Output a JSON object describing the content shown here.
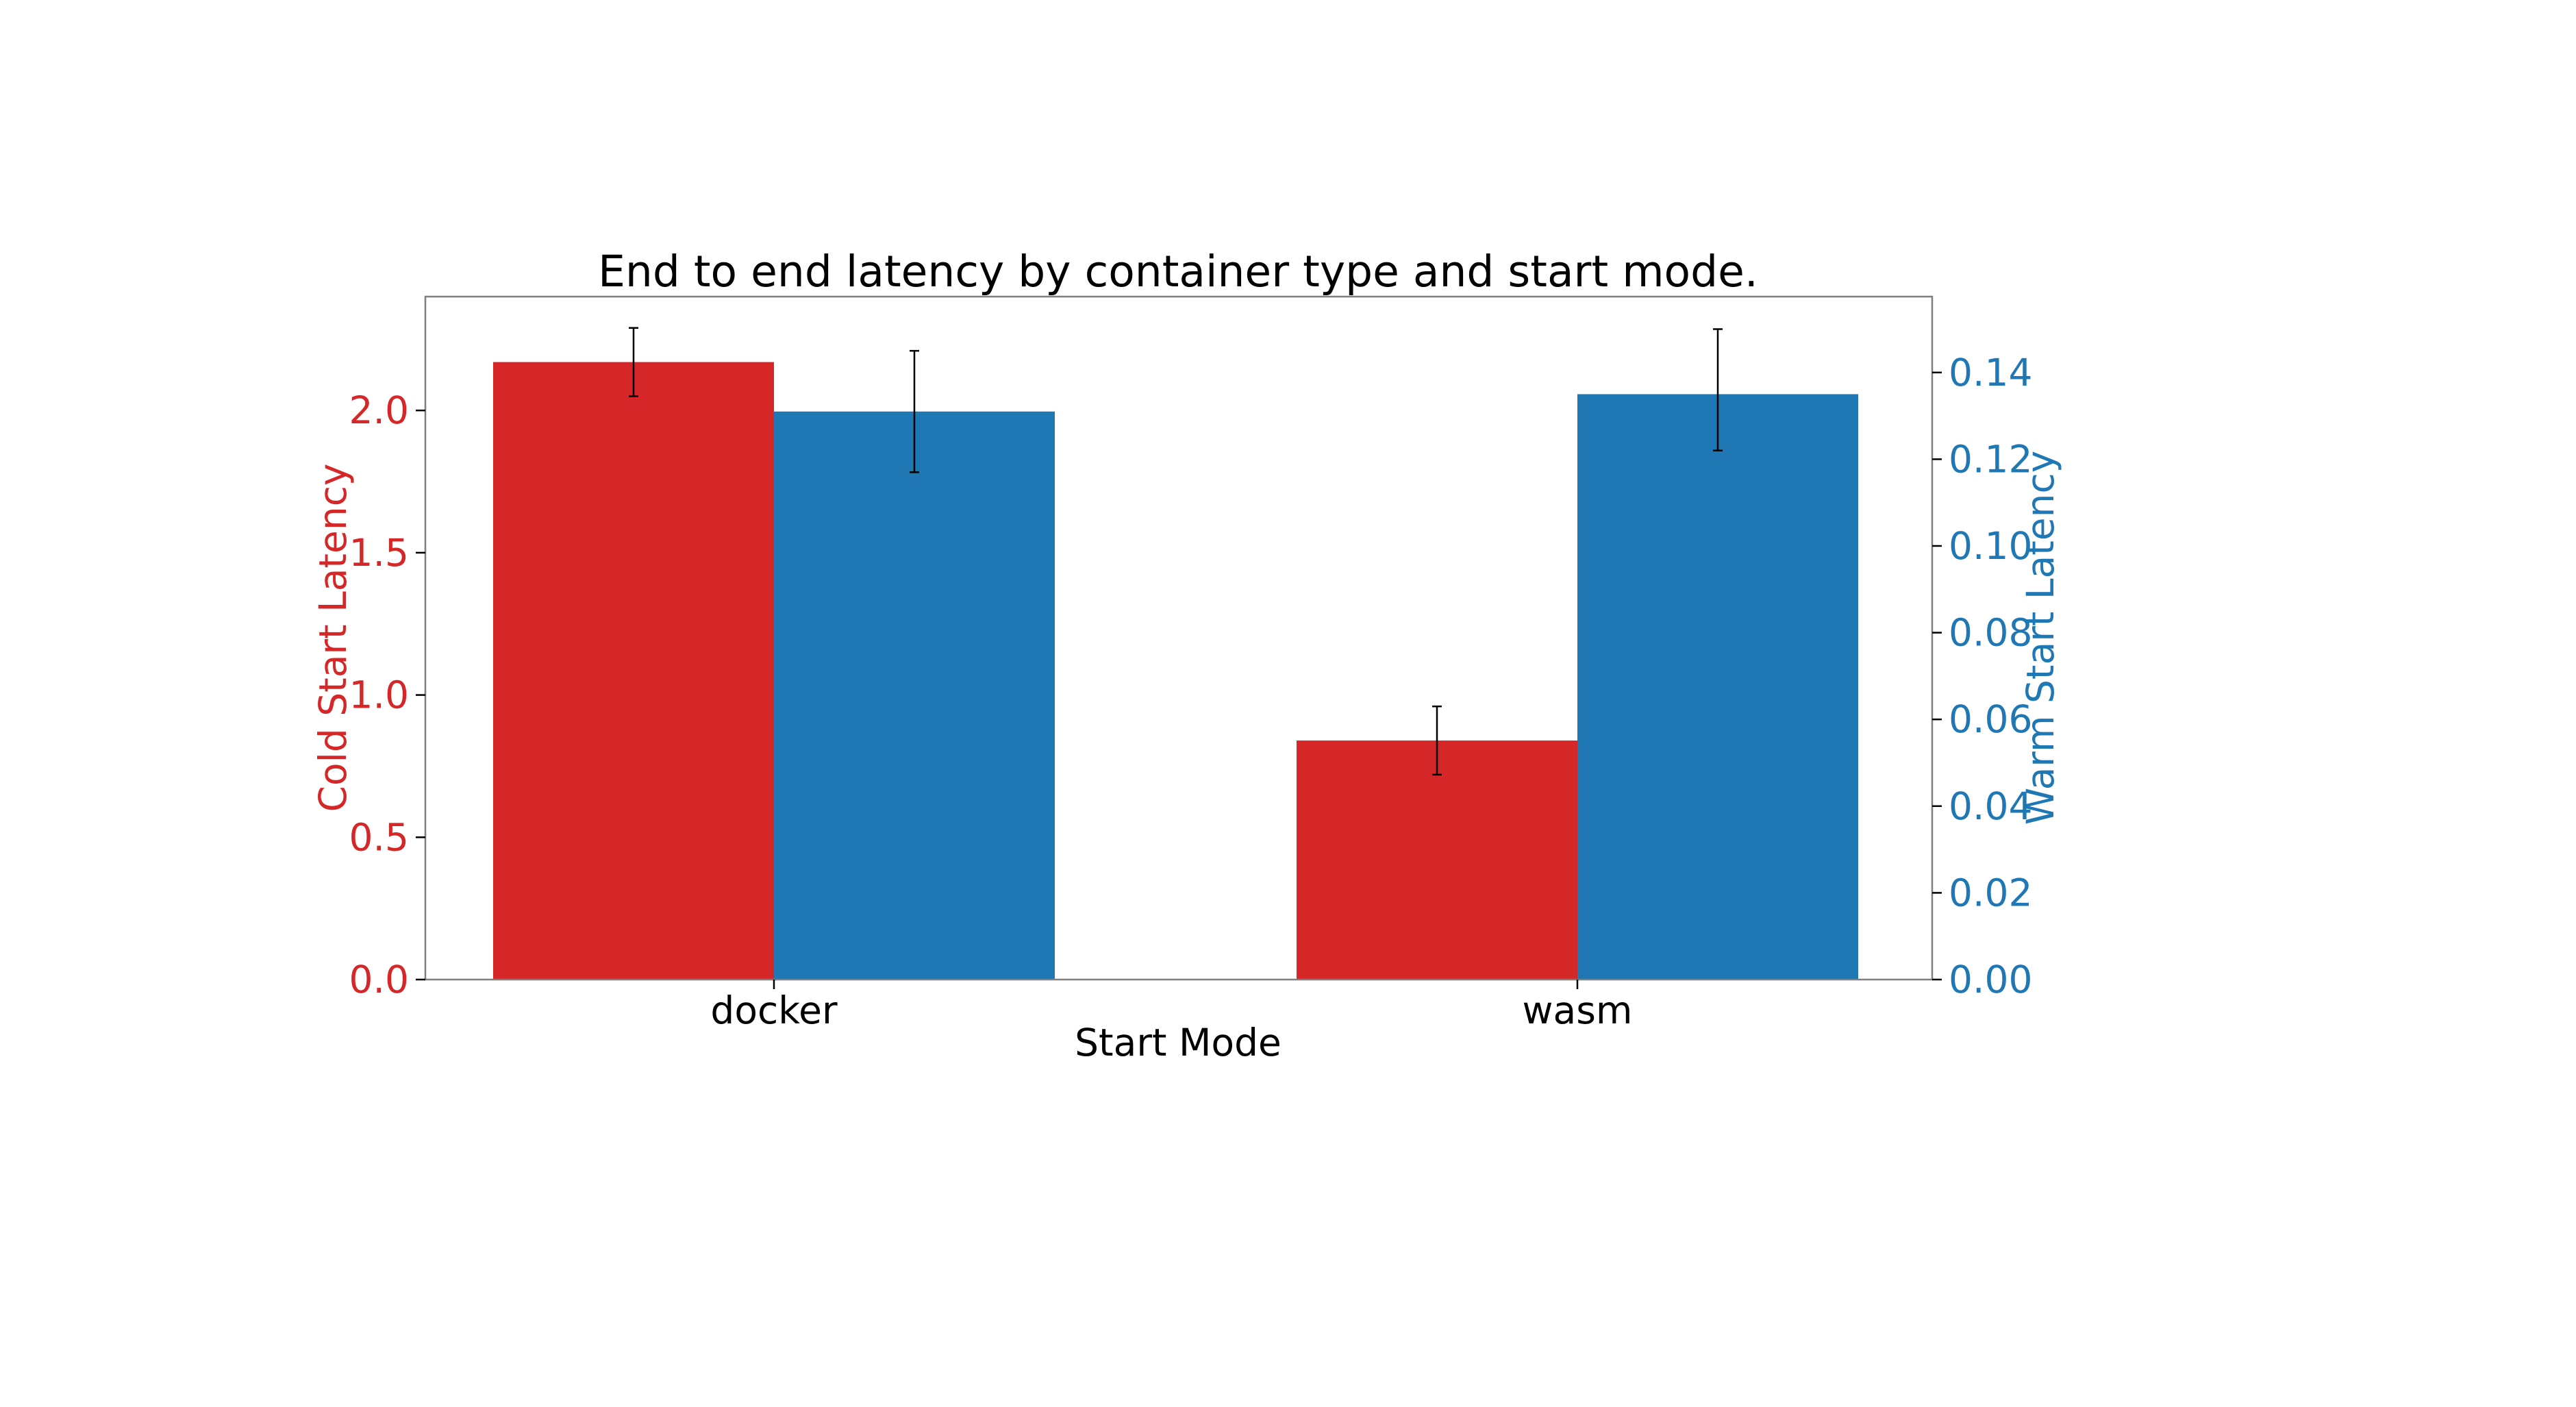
{
  "chart_data": {
    "type": "bar",
    "title": "End to end latency by container type and start mode.",
    "xlabel": "Start Mode",
    "categories": [
      "docker",
      "wasm"
    ],
    "y_left": {
      "label": "Cold Start Latency",
      "color": "#d62728",
      "ylim": [
        0,
        2.4
      ],
      "ticks": [
        0.0,
        0.5,
        1.0,
        1.5,
        2.0
      ],
      "tick_labels": [
        "0.0",
        "0.5",
        "1.0",
        "1.5",
        "2.0"
      ]
    },
    "y_right": {
      "label": "Warm Start Latency",
      "color": "#1f77b4",
      "ylim": [
        0,
        0.1575
      ],
      "ticks": [
        0.0,
        0.02,
        0.04,
        0.06,
        0.08,
        0.1,
        0.12,
        0.14
      ],
      "tick_labels": [
        "0.00",
        "0.02",
        "0.04",
        "0.06",
        "0.08",
        "0.10",
        "0.12",
        "0.14"
      ]
    },
    "series": [
      {
        "axis": "left",
        "color": "#d62728",
        "values": [
          2.17,
          0.84
        ],
        "error_low": [
          2.05,
          0.72
        ],
        "error_high": [
          2.29,
          0.96
        ]
      },
      {
        "axis": "right",
        "color": "#1f77b4",
        "values": [
          0.131,
          0.135
        ],
        "error_low": [
          0.117,
          0.122
        ],
        "error_high": [
          0.145,
          0.15
        ]
      }
    ],
    "grid": false,
    "legend": "none"
  }
}
